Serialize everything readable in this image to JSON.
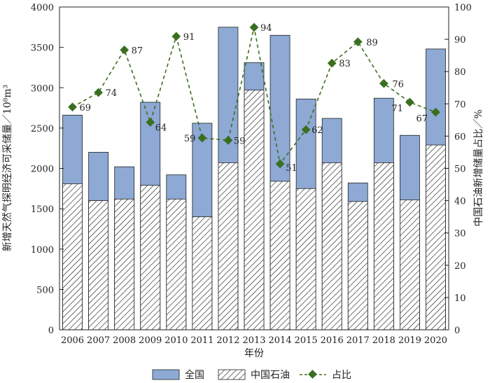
{
  "chart_data": {
    "type": "bar",
    "categories": [
      "2006",
      "2007",
      "2008",
      "2009",
      "2010",
      "2011",
      "2012",
      "2013",
      "2014",
      "2015",
      "2016",
      "2017",
      "2018",
      "2019",
      "2020"
    ],
    "series": [
      {
        "name": "全国",
        "kind": "bar",
        "axis": "left",
        "color": "#8da9d4",
        "values": [
          2660,
          2200,
          2020,
          2820,
          1920,
          2560,
          3750,
          3310,
          3650,
          2860,
          2620,
          1820,
          2870,
          2410,
          3480
        ]
      },
      {
        "name": "中国石油",
        "kind": "bar-hatched",
        "axis": "left",
        "color": "#8da9d4",
        "values": [
          1810,
          1600,
          1620,
          1790,
          1620,
          1400,
          2070,
          2970,
          1840,
          1750,
          2070,
          1590,
          2070,
          1610,
          2290
        ]
      },
      {
        "name": "占比",
        "kind": "line",
        "axis": "right",
        "color": "#3b6e1f",
        "values": [
          69,
          73.5,
          86.7,
          64.3,
          90.9,
          59.4,
          58.7,
          93.7,
          51.4,
          62,
          82.6,
          89.2,
          76.3,
          70.5,
          67.4
        ]
      }
    ],
    "data_labels": [
      "69",
      "74",
      "87",
      "64",
      "91",
      "59",
      "59",
      "94",
      "51",
      "62",
      "83",
      "89",
      "76",
      "71",
      "67"
    ],
    "xlabel": "年份",
    "ylabel_left": "新增天然气探明经济可采储量／10⁸m³",
    "ylabel_right": "中国石油新增储量占比／%",
    "ylim_left": [
      0,
      4000
    ],
    "yticks_left": [
      0,
      500,
      1000,
      1500,
      2000,
      2500,
      3000,
      3500,
      4000
    ],
    "ylim_right": [
      0,
      100
    ],
    "yticks_right": [
      0,
      10,
      20,
      30,
      40,
      50,
      60,
      70,
      80,
      90,
      100
    ],
    "legend": [
      "全国",
      "中国石油",
      "占比"
    ]
  }
}
